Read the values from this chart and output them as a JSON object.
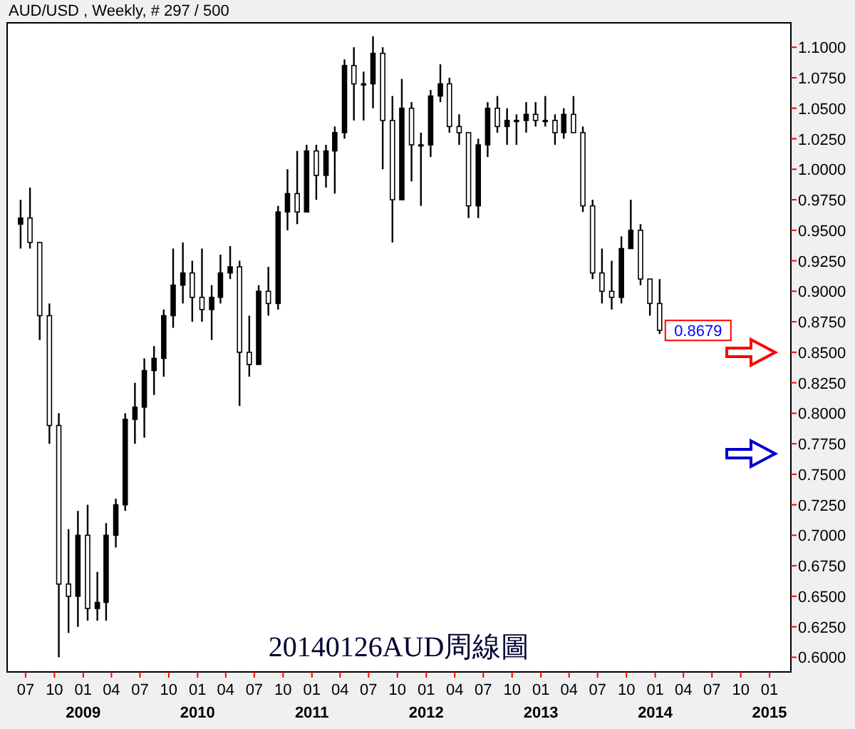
{
  "chart_data": {
    "type": "candlestick",
    "title": "AUD/USD , Weekly, # 297 / 500",
    "color": "#000000",
    "x": [
      "2008-06-15",
      "2008-07-15",
      "2008-08-15",
      "2008-09-15",
      "2008-10-15",
      "2008-11-15",
      "2008-12-15",
      "2009-01-15",
      "2009-02-15",
      "2009-03-15",
      "2009-04-15",
      "2009-05-15",
      "2009-06-15",
      "2009-07-15",
      "2009-08-15",
      "2009-09-15",
      "2009-10-15",
      "2009-11-15",
      "2009-12-15",
      "2010-01-15",
      "2010-02-15",
      "2010-03-15",
      "2010-04-15",
      "2010-05-15",
      "2010-06-15",
      "2010-07-15",
      "2010-08-15",
      "2010-09-15",
      "2010-10-15",
      "2010-11-15",
      "2010-12-15",
      "2011-01-15",
      "2011-02-15",
      "2011-03-15",
      "2011-04-15",
      "2011-05-15",
      "2011-06-15",
      "2011-07-15",
      "2011-08-15",
      "2011-09-15",
      "2011-10-15",
      "2011-11-15",
      "2011-12-15",
      "2012-01-15",
      "2012-02-15",
      "2012-03-15",
      "2012-04-15",
      "2012-05-15",
      "2012-06-15",
      "2012-07-15",
      "2012-08-15",
      "2012-09-15",
      "2012-10-15",
      "2012-11-15",
      "2012-12-15",
      "2013-01-15",
      "2013-02-15",
      "2013-03-15",
      "2013-04-15",
      "2013-05-15",
      "2013-06-15",
      "2013-07-15",
      "2013-08-15",
      "2013-09-15",
      "2013-10-15",
      "2013-11-15",
      "2013-12-15",
      "2014-01-15"
    ],
    "ohlc": [
      [
        0.955,
        0.975,
        0.935,
        0.96
      ],
      [
        0.96,
        0.985,
        0.935,
        0.94
      ],
      [
        0.94,
        0.94,
        0.86,
        0.88
      ],
      [
        0.88,
        0.89,
        0.775,
        0.79
      ],
      [
        0.79,
        0.8,
        0.6,
        0.66
      ],
      [
        0.66,
        0.705,
        0.62,
        0.65
      ],
      [
        0.65,
        0.72,
        0.625,
        0.7
      ],
      [
        0.7,
        0.725,
        0.63,
        0.64
      ],
      [
        0.64,
        0.67,
        0.63,
        0.645
      ],
      [
        0.645,
        0.71,
        0.63,
        0.7
      ],
      [
        0.7,
        0.73,
        0.69,
        0.725
      ],
      [
        0.725,
        0.8,
        0.72,
        0.795
      ],
      [
        0.795,
        0.825,
        0.775,
        0.805
      ],
      [
        0.805,
        0.845,
        0.78,
        0.835
      ],
      [
        0.835,
        0.855,
        0.815,
        0.845
      ],
      [
        0.845,
        0.885,
        0.83,
        0.88
      ],
      [
        0.88,
        0.935,
        0.87,
        0.905
      ],
      [
        0.905,
        0.94,
        0.89,
        0.915
      ],
      [
        0.915,
        0.925,
        0.875,
        0.895
      ],
      [
        0.895,
        0.935,
        0.875,
        0.885
      ],
      [
        0.885,
        0.905,
        0.86,
        0.895
      ],
      [
        0.895,
        0.93,
        0.89,
        0.915
      ],
      [
        0.915,
        0.937,
        0.91,
        0.92
      ],
      [
        0.92,
        0.925,
        0.806,
        0.85
      ],
      [
        0.85,
        0.88,
        0.83,
        0.84
      ],
      [
        0.84,
        0.905,
        0.84,
        0.9
      ],
      [
        0.9,
        0.92,
        0.88,
        0.89
      ],
      [
        0.89,
        0.97,
        0.885,
        0.965
      ],
      [
        0.965,
        1.0,
        0.95,
        0.98
      ],
      [
        0.98,
        1.015,
        0.955,
        0.965
      ],
      [
        0.965,
        1.02,
        0.965,
        1.015
      ],
      [
        1.015,
        1.02,
        0.975,
        0.995
      ],
      [
        0.995,
        1.02,
        0.985,
        1.015
      ],
      [
        1.015,
        1.035,
        0.98,
        1.03
      ],
      [
        1.03,
        1.09,
        1.025,
        1.085
      ],
      [
        1.085,
        1.1,
        1.04,
        1.07
      ],
      [
        1.07,
        1.08,
        1.04,
        1.07
      ],
      [
        1.07,
        1.109,
        1.05,
        1.095
      ],
      [
        1.095,
        1.1,
        1.0,
        1.04
      ],
      [
        1.04,
        1.06,
        0.94,
        0.975
      ],
      [
        0.975,
        1.074,
        0.975,
        1.05
      ],
      [
        1.05,
        1.055,
        0.99,
        1.02
      ],
      [
        1.02,
        1.03,
        0.97,
        1.02
      ],
      [
        1.02,
        1.065,
        1.01,
        1.06
      ],
      [
        1.06,
        1.086,
        1.055,
        1.07
      ],
      [
        1.07,
        1.075,
        1.03,
        1.035
      ],
      [
        1.035,
        1.045,
        1.02,
        1.03
      ],
      [
        1.03,
        1.03,
        0.96,
        0.97
      ],
      [
        0.97,
        1.025,
        0.96,
        1.02
      ],
      [
        1.02,
        1.055,
        1.01,
        1.05
      ],
      [
        1.05,
        1.06,
        1.03,
        1.035
      ],
      [
        1.035,
        1.05,
        1.02,
        1.04
      ],
      [
        1.04,
        1.045,
        1.02,
        1.04
      ],
      [
        1.04,
        1.055,
        1.03,
        1.045
      ],
      [
        1.045,
        1.055,
        1.035,
        1.04
      ],
      [
        1.04,
        1.06,
        1.035,
        1.04
      ],
      [
        1.04,
        1.045,
        1.02,
        1.03
      ],
      [
        1.03,
        1.05,
        1.025,
        1.045
      ],
      [
        1.045,
        1.06,
        1.03,
        1.03
      ],
      [
        1.03,
        1.035,
        0.965,
        0.97
      ],
      [
        0.97,
        0.975,
        0.91,
        0.915
      ],
      [
        0.915,
        0.935,
        0.89,
        0.9
      ],
      [
        0.9,
        0.925,
        0.885,
        0.895
      ],
      [
        0.895,
        0.945,
        0.89,
        0.935
      ],
      [
        0.935,
        0.975,
        0.935,
        0.95
      ],
      [
        0.95,
        0.955,
        0.905,
        0.91
      ],
      [
        0.91,
        0.91,
        0.88,
        0.89
      ],
      [
        0.89,
        0.91,
        0.865,
        0.868
      ]
    ],
    "xlim": [
      "2008-05-03",
      "2015-03-10"
    ],
    "xticks": [
      {
        "value": "2008-07-01",
        "label": "07"
      },
      {
        "value": "2008-10-01",
        "label": "10"
      },
      {
        "value": "2009-01-01",
        "label": "01\n2009"
      },
      {
        "value": "2009-04-01",
        "label": "04"
      },
      {
        "value": "2009-07-01",
        "label": "07"
      },
      {
        "value": "2009-10-01",
        "label": "10"
      },
      {
        "value": "2010-01-01",
        "label": "01\n2010"
      },
      {
        "value": "2010-04-01",
        "label": "04"
      },
      {
        "value": "2010-07-01",
        "label": "07"
      },
      {
        "value": "2010-10-01",
        "label": "10"
      },
      {
        "value": "2011-01-01",
        "label": "01\n2011"
      },
      {
        "value": "2011-04-01",
        "label": "04"
      },
      {
        "value": "2011-07-01",
        "label": "07"
      },
      {
        "value": "2011-10-01",
        "label": "10"
      },
      {
        "value": "2012-01-01",
        "label": "01\n2012"
      },
      {
        "value": "2012-04-01",
        "label": "04"
      },
      {
        "value": "2012-07-01",
        "label": "07"
      },
      {
        "value": "2012-10-01",
        "label": "10"
      },
      {
        "value": "2013-01-01",
        "label": "01\n2013"
      },
      {
        "value": "2013-04-01",
        "label": "04"
      },
      {
        "value": "2013-07-01",
        "label": "07"
      },
      {
        "value": "2013-10-01",
        "label": "10"
      },
      {
        "value": "2014-01-01",
        "label": "01\n2014"
      },
      {
        "value": "2014-04-01",
        "label": "04"
      },
      {
        "value": "2014-07-01",
        "label": "07"
      },
      {
        "value": "2014-10-01",
        "label": "10"
      },
      {
        "value": "2015-01-01",
        "label": "01\n2015"
      }
    ],
    "ylim": [
      0.588,
      1.12
    ],
    "yticks": [
      {
        "value": 0.6,
        "label": "0.6000"
      },
      {
        "value": 0.625,
        "label": "0.6250"
      },
      {
        "value": 0.65,
        "label": "0.6500"
      },
      {
        "value": 0.675,
        "label": "0.6750"
      },
      {
        "value": 0.7,
        "label": "0.7000"
      },
      {
        "value": 0.725,
        "label": "0.7250"
      },
      {
        "value": 0.75,
        "label": "0.7500"
      },
      {
        "value": 0.775,
        "label": "0.7750"
      },
      {
        "value": 0.8,
        "label": "0.8000"
      },
      {
        "value": 0.825,
        "label": "0.8250"
      },
      {
        "value": 0.85,
        "label": "0.8500"
      },
      {
        "value": 0.875,
        "label": "0.8750"
      },
      {
        "value": 0.9,
        "label": "0.9000"
      },
      {
        "value": 0.925,
        "label": "0.9250"
      },
      {
        "value": 0.95,
        "label": "0.9500"
      },
      {
        "value": 0.975,
        "label": "0.9750"
      },
      {
        "value": 1.0,
        "label": "1.0000"
      },
      {
        "value": 1.025,
        "label": "1.0250"
      },
      {
        "value": 1.05,
        "label": "1.0500"
      },
      {
        "value": 1.075,
        "label": "1.0750"
      },
      {
        "value": 1.1,
        "label": "1.1000"
      }
    ],
    "annotations": [
      {
        "text": "0.8679",
        "x": "2014-01-15",
        "y": 0.8679
      },
      "20140126AUD周線圖"
    ]
  }
}
